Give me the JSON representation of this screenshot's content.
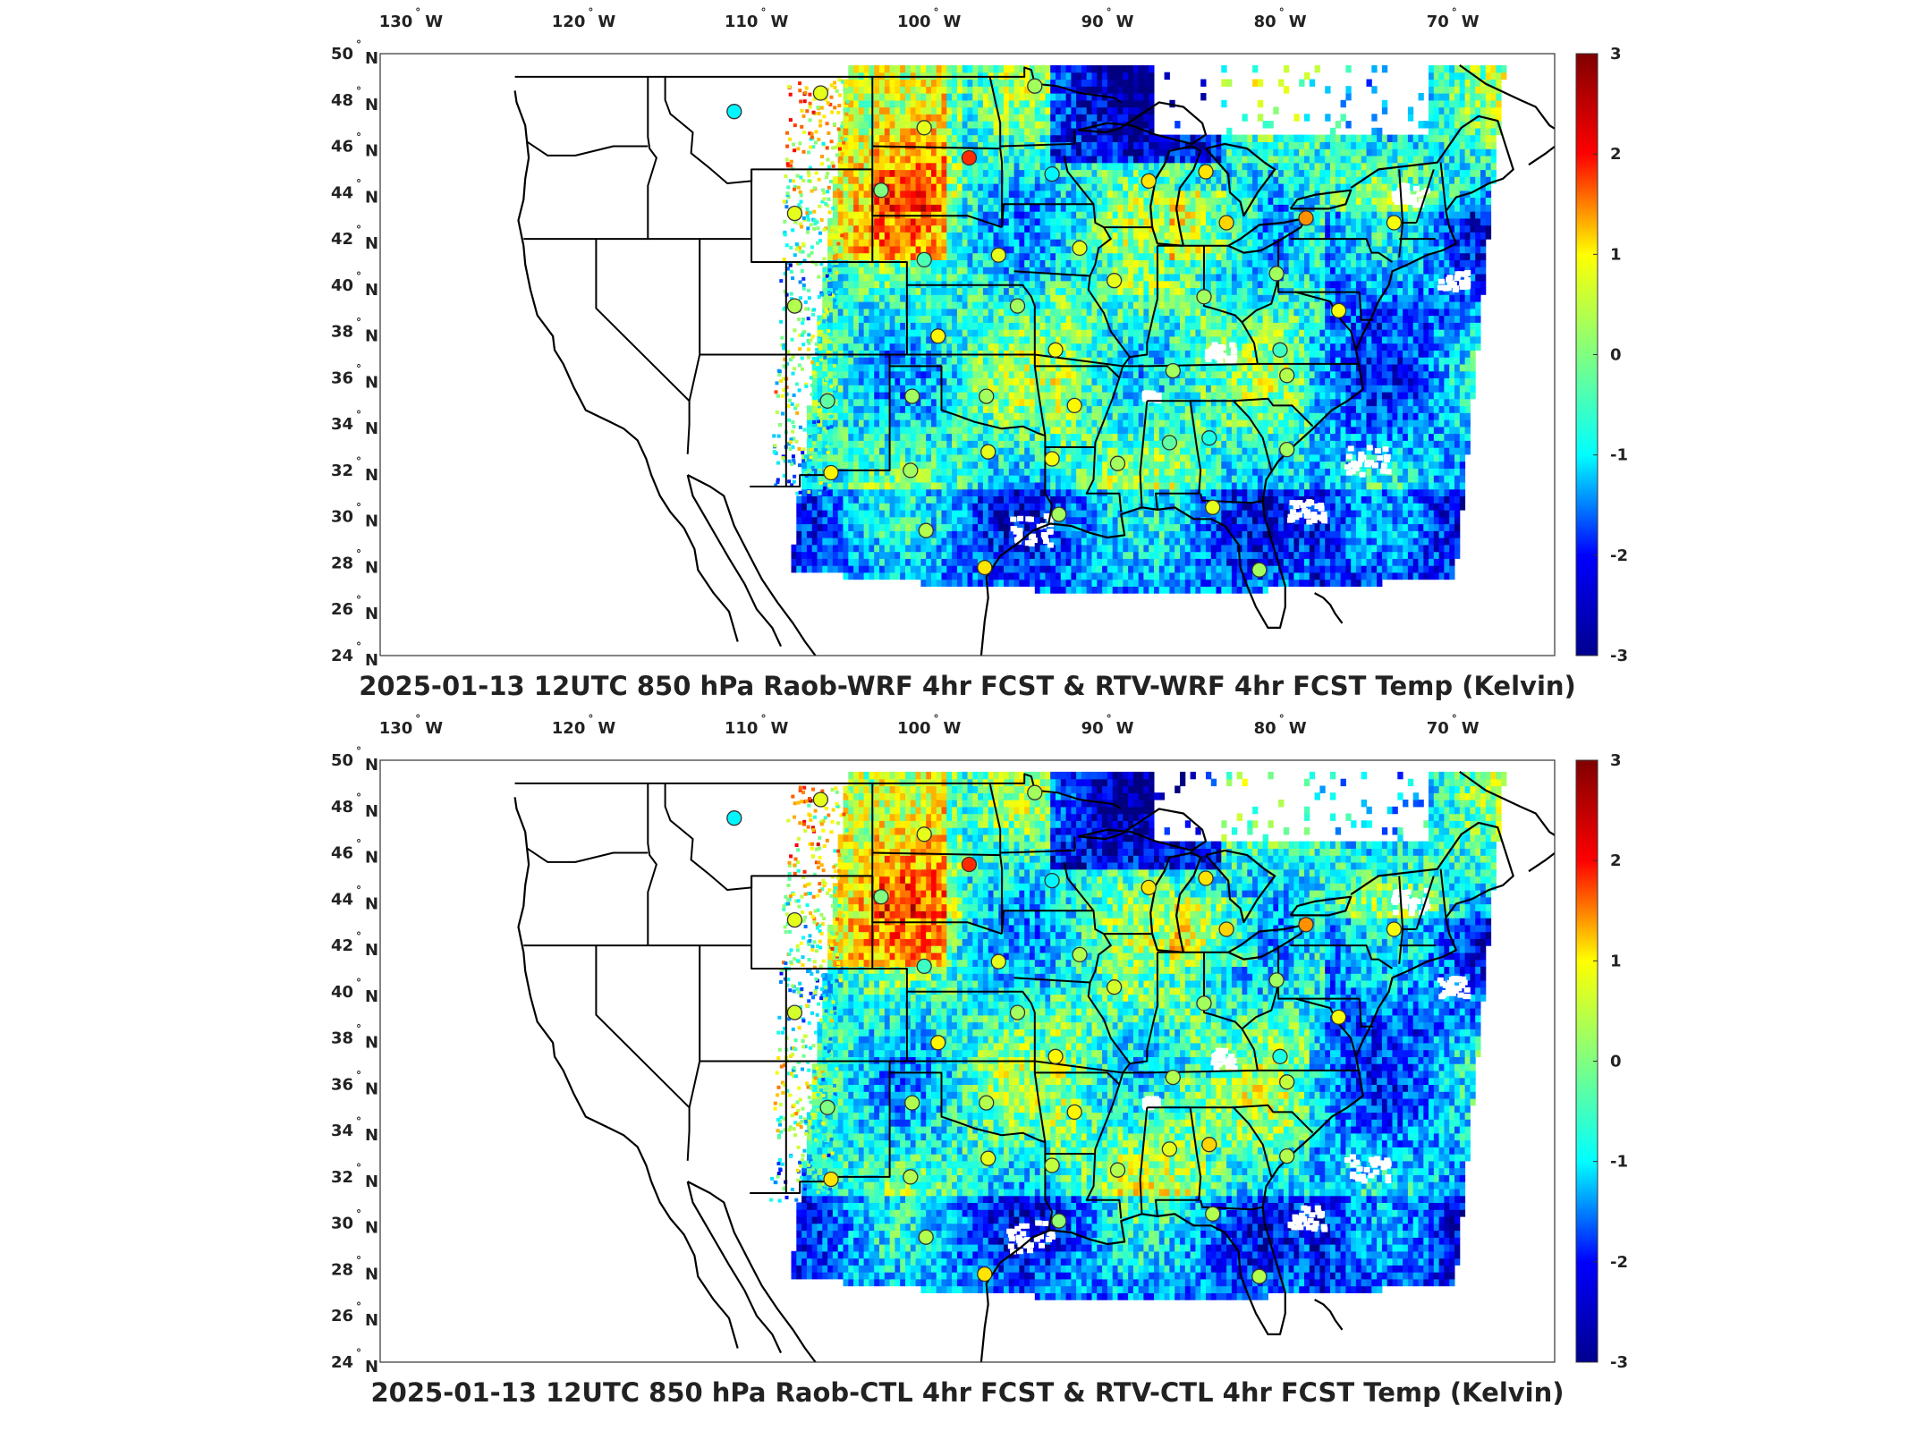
{
  "colorbar": {
    "range": [
      -3,
      3
    ],
    "ticks": [
      "3",
      "2",
      "1",
      "0",
      "-1",
      "-2",
      "-3"
    ],
    "colormap": "jet",
    "colors": [
      "#00008f",
      "#0000ff",
      "#00ffff",
      "#80ff80",
      "#ffff00",
      "#ff0000",
      "#800000"
    ]
  },
  "lon_ticks": [
    {
      "value": -130,
      "label": "130",
      "hemi": "W"
    },
    {
      "value": -120,
      "label": "120",
      "hemi": "W"
    },
    {
      "value": -110,
      "label": "110",
      "hemi": "W"
    },
    {
      "value": -100,
      "label": "100",
      "hemi": "W"
    },
    {
      "value": -90,
      "label": "90",
      "hemi": "W"
    },
    {
      "value": -80,
      "label": "80",
      "hemi": "W"
    },
    {
      "value": -70,
      "label": "70",
      "hemi": "W"
    }
  ],
  "lat_ticks": [
    {
      "value": 50,
      "label": "50",
      "hemi": "N"
    },
    {
      "value": 48,
      "label": "48",
      "hemi": "N"
    },
    {
      "value": 46,
      "label": "46",
      "hemi": "N"
    },
    {
      "value": 44,
      "label": "44",
      "hemi": "N"
    },
    {
      "value": 42,
      "label": "42",
      "hemi": "N"
    },
    {
      "value": 40,
      "label": "40",
      "hemi": "N"
    },
    {
      "value": 38,
      "label": "38",
      "hemi": "N"
    },
    {
      "value": 36,
      "label": "36",
      "hemi": "N"
    },
    {
      "value": 34,
      "label": "34",
      "hemi": "N"
    },
    {
      "value": 32,
      "label": "32",
      "hemi": "N"
    },
    {
      "value": 30,
      "label": "30",
      "hemi": "N"
    },
    {
      "value": 28,
      "label": "28",
      "hemi": "N"
    },
    {
      "value": 26,
      "label": "26",
      "hemi": "N"
    },
    {
      "value": 24,
      "label": "24",
      "hemi": "N"
    }
  ],
  "panels": [
    {
      "title": "2025-01-13 12UTC 850 hPa Raob-WRF 4hr FCST & RTV-WRF 4hr FCST Temp (Kelvin)",
      "stations": [
        {
          "lon": -112.0,
          "lat": 47.5,
          "v": -0.8
        },
        {
          "lon": -107.0,
          "lat": 48.3,
          "v": 0.6
        },
        {
          "lon": -103.5,
          "lat": 44.1,
          "v": 0.0
        },
        {
          "lon": -101.0,
          "lat": 46.8,
          "v": 0.6
        },
        {
          "lon": -98.4,
          "lat": 45.5,
          "v": 2.0
        },
        {
          "lon": -93.6,
          "lat": 44.8,
          "v": -0.8
        },
        {
          "lon": -88.0,
          "lat": 44.5,
          "v": 0.9
        },
        {
          "lon": -84.7,
          "lat": 44.9,
          "v": 0.9
        },
        {
          "lon": -83.5,
          "lat": 42.7,
          "v": 1.0
        },
        {
          "lon": -78.9,
          "lat": 42.9,
          "v": 1.4
        },
        {
          "lon": -73.8,
          "lat": 42.7,
          "v": 0.7
        },
        {
          "lon": -108.5,
          "lat": 43.1,
          "v": 0.6
        },
        {
          "lon": -101.0,
          "lat": 41.1,
          "v": -0.3
        },
        {
          "lon": -96.7,
          "lat": 41.3,
          "v": 0.6
        },
        {
          "lon": -92.0,
          "lat": 41.6,
          "v": 0.6
        },
        {
          "lon": -90.0,
          "lat": 40.2,
          "v": 0.6
        },
        {
          "lon": -84.8,
          "lat": 39.5,
          "v": 0.2
        },
        {
          "lon": -80.6,
          "lat": 40.5,
          "v": 0.2
        },
        {
          "lon": -108.5,
          "lat": 39.1,
          "v": 0.3
        },
        {
          "lon": -100.2,
          "lat": 37.8,
          "v": 0.8
        },
        {
          "lon": -95.6,
          "lat": 39.1,
          "v": 0.2
        },
        {
          "lon": -93.4,
          "lat": 37.2,
          "v": 0.7
        },
        {
          "lon": -86.6,
          "lat": 36.3,
          "v": 0.2
        },
        {
          "lon": -80.4,
          "lat": 37.2,
          "v": -0.4
        },
        {
          "lon": -80.0,
          "lat": 36.1,
          "v": 0.3
        },
        {
          "lon": -77.0,
          "lat": 38.9,
          "v": 0.7
        },
        {
          "lon": -106.6,
          "lat": 35.0,
          "v": -0.2
        },
        {
          "lon": -101.7,
          "lat": 35.2,
          "v": 0.2
        },
        {
          "lon": -97.4,
          "lat": 35.2,
          "v": 0.2
        },
        {
          "lon": -92.3,
          "lat": 34.8,
          "v": 0.8
        },
        {
          "lon": -86.8,
          "lat": 33.2,
          "v": -0.2
        },
        {
          "lon": -84.5,
          "lat": 33.4,
          "v": -0.6
        },
        {
          "lon": -80.0,
          "lat": 32.9,
          "v": 0.2
        },
        {
          "lon": -89.8,
          "lat": 32.3,
          "v": 0.2
        },
        {
          "lon": -93.6,
          "lat": 32.5,
          "v": 0.7
        },
        {
          "lon": -97.3,
          "lat": 32.8,
          "v": 0.6
        },
        {
          "lon": -101.8,
          "lat": 32.0,
          "v": 0.2
        },
        {
          "lon": -106.4,
          "lat": 31.9,
          "v": 0.8
        },
        {
          "lon": -100.9,
          "lat": 29.4,
          "v": 0.3
        },
        {
          "lon": -97.5,
          "lat": 27.8,
          "v": 0.9
        },
        {
          "lon": -93.2,
          "lat": 30.1,
          "v": 0.2
        },
        {
          "lon": -84.3,
          "lat": 30.4,
          "v": 0.6
        },
        {
          "lon": -81.6,
          "lat": 27.7,
          "v": 0.2
        },
        {
          "lon": -94.6,
          "lat": 48.6,
          "v": 0.2
        }
      ]
    },
    {
      "title": "2025-01-13 12UTC 850 hPa Raob-CTL 4hr FCST & RTV-CTL 4hr FCST Temp (Kelvin)",
      "stations": [
        {
          "lon": -112.0,
          "lat": 47.5,
          "v": -0.8
        },
        {
          "lon": -107.0,
          "lat": 48.3,
          "v": 0.6
        },
        {
          "lon": -103.5,
          "lat": 44.1,
          "v": 0.0
        },
        {
          "lon": -101.0,
          "lat": 46.8,
          "v": 0.6
        },
        {
          "lon": -98.4,
          "lat": 45.5,
          "v": 2.0
        },
        {
          "lon": -93.6,
          "lat": 44.8,
          "v": -0.8
        },
        {
          "lon": -88.0,
          "lat": 44.5,
          "v": 0.9
        },
        {
          "lon": -84.7,
          "lat": 44.9,
          "v": 0.9
        },
        {
          "lon": -83.5,
          "lat": 42.7,
          "v": 1.0
        },
        {
          "lon": -78.9,
          "lat": 42.9,
          "v": 1.4
        },
        {
          "lon": -73.8,
          "lat": 42.7,
          "v": 0.7
        },
        {
          "lon": -108.5,
          "lat": 43.1,
          "v": 0.6
        },
        {
          "lon": -101.0,
          "lat": 41.1,
          "v": -0.4
        },
        {
          "lon": -96.7,
          "lat": 41.3,
          "v": 0.6
        },
        {
          "lon": -92.0,
          "lat": 41.6,
          "v": 0.3
        },
        {
          "lon": -90.0,
          "lat": 40.2,
          "v": 0.5
        },
        {
          "lon": -84.8,
          "lat": 39.5,
          "v": 0.2
        },
        {
          "lon": -80.6,
          "lat": 40.5,
          "v": 0.2
        },
        {
          "lon": -108.5,
          "lat": 39.1,
          "v": 0.5
        },
        {
          "lon": -100.2,
          "lat": 37.8,
          "v": 0.8
        },
        {
          "lon": -95.6,
          "lat": 39.1,
          "v": 0.2
        },
        {
          "lon": -93.4,
          "lat": 37.2,
          "v": 0.8
        },
        {
          "lon": -86.6,
          "lat": 36.3,
          "v": 0.3
        },
        {
          "lon": -80.4,
          "lat": 37.2,
          "v": -0.6
        },
        {
          "lon": -80.0,
          "lat": 36.1,
          "v": 0.4
        },
        {
          "lon": -77.0,
          "lat": 38.9,
          "v": 0.7
        },
        {
          "lon": -106.6,
          "lat": 35.0,
          "v": 0.0
        },
        {
          "lon": -101.7,
          "lat": 35.2,
          "v": 0.3
        },
        {
          "lon": -97.4,
          "lat": 35.2,
          "v": 0.3
        },
        {
          "lon": -92.3,
          "lat": 34.8,
          "v": 0.8
        },
        {
          "lon": -86.8,
          "lat": 33.2,
          "v": 0.6
        },
        {
          "lon": -84.5,
          "lat": 33.4,
          "v": 1.0
        },
        {
          "lon": -80.0,
          "lat": 32.9,
          "v": 0.3
        },
        {
          "lon": -89.8,
          "lat": 32.3,
          "v": 0.3
        },
        {
          "lon": -93.6,
          "lat": 32.5,
          "v": 0.4
        },
        {
          "lon": -97.3,
          "lat": 32.8,
          "v": 0.6
        },
        {
          "lon": -101.8,
          "lat": 32.0,
          "v": 0.3
        },
        {
          "lon": -106.4,
          "lat": 31.9,
          "v": 0.9
        },
        {
          "lon": -100.9,
          "lat": 29.4,
          "v": 0.3
        },
        {
          "lon": -97.5,
          "lat": 27.8,
          "v": 0.9
        },
        {
          "lon": -93.2,
          "lat": 30.1,
          "v": 0.1
        },
        {
          "lon": -84.3,
          "lat": 30.4,
          "v": 0.3
        },
        {
          "lon": -81.6,
          "lat": 27.7,
          "v": 0.3
        },
        {
          "lon": -94.6,
          "lat": 48.6,
          "v": 0.2
        }
      ]
    }
  ]
}
